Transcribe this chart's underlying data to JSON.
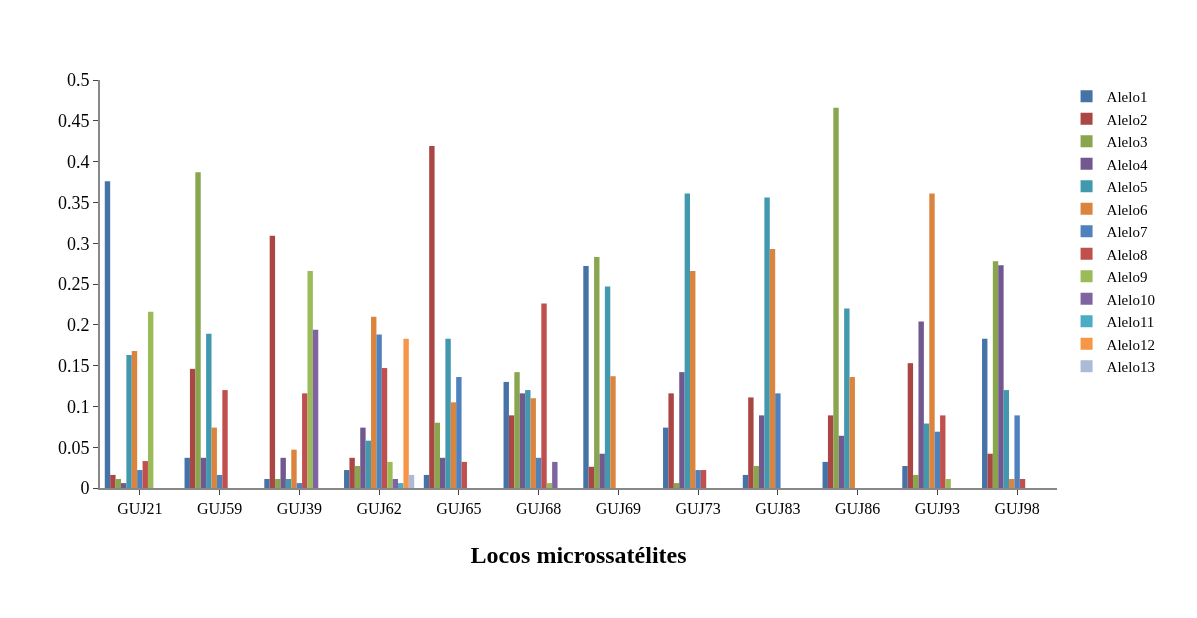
{
  "chart_data": {
    "type": "bar",
    "xlabel": "Locos microssatélites",
    "categories": [
      "GUJ21",
      "GUJ59",
      "GUJ39",
      "GUJ62",
      "GUJ65",
      "GUJ68",
      "GUJ69",
      "GUJ73",
      "GUJ83",
      "GUJ86",
      "GUJ93",
      "GUJ98"
    ],
    "ylim": [
      0,
      0.5
    ],
    "yticks": [
      0,
      0.05,
      0.1,
      0.15,
      0.2,
      0.25,
      0.3,
      0.35,
      0.4,
      0.45,
      0.5
    ],
    "legend": "right",
    "series": [
      {
        "name": "Alelo1",
        "color": "#4572a7",
        "values": [
          0.376,
          0.037,
          0.011,
          0.022,
          0.016,
          0.13,
          0.272,
          0.074,
          0.016,
          0.032,
          0.027,
          0.183
        ]
      },
      {
        "name": "Alelo2",
        "color": "#aa4643",
        "values": [
          0.016,
          0.146,
          0.309,
          0.037,
          0.419,
          0.089,
          0.026,
          0.116,
          0.111,
          0.089,
          0.153,
          0.042
        ]
      },
      {
        "name": "Alelo3",
        "color": "#89a54e",
        "values": [
          0.011,
          0.387,
          0.011,
          0.027,
          0.08,
          0.142,
          0.283,
          0.006,
          0.027,
          0.466,
          0.016,
          0.278
        ]
      },
      {
        "name": "Alelo4",
        "color": "#71588f",
        "values": [
          0.006,
          0.037,
          0.037,
          0.074,
          0.037,
          0.116,
          0.042,
          0.142,
          0.089,
          0.064,
          0.204,
          0.273
        ]
      },
      {
        "name": "Alelo5",
        "color": "#4198af",
        "values": [
          0.163,
          0.189,
          0.011,
          0.058,
          0.183,
          0.12,
          0.247,
          0.361,
          0.356,
          0.22,
          0.079,
          0.12
        ]
      },
      {
        "name": "Alelo6",
        "color": "#db843d",
        "values": [
          0.168,
          0.074,
          0.047,
          0.21,
          0.105,
          0.11,
          0.137,
          0.266,
          0.293,
          0.136,
          0.361,
          0.011
        ]
      },
      {
        "name": "Alelo7",
        "color": "#4f81bd",
        "values": [
          0.022,
          0.016,
          0.006,
          0.188,
          0.136,
          0.037,
          0,
          0.022,
          0.116,
          0,
          0.069,
          0.089
        ]
      },
      {
        "name": "Alelo8",
        "color": "#c0504d",
        "values": [
          0.033,
          0.12,
          0.116,
          0.147,
          0.032,
          0.226,
          0,
          0.022,
          0,
          0,
          0.089,
          0.011
        ]
      },
      {
        "name": "Alelo9",
        "color": "#9bbb59",
        "values": [
          0.216,
          0,
          0.266,
          0.032,
          0,
          0.006,
          0,
          0,
          0,
          0,
          0.011,
          0
        ]
      },
      {
        "name": "Alelo10",
        "color": "#8064a2",
        "values": [
          0,
          0,
          0.194,
          0.011,
          0,
          0.032,
          0,
          0,
          0,
          0,
          0,
          0
        ]
      },
      {
        "name": "Alelo11",
        "color": "#4bacc6",
        "values": [
          0,
          0,
          0,
          0.006,
          0,
          0,
          0,
          0,
          0,
          0,
          0,
          0
        ]
      },
      {
        "name": "Alelo12",
        "color": "#f79646",
        "values": [
          0,
          0,
          0,
          0.183,
          0,
          0,
          0,
          0,
          0,
          0,
          0,
          0
        ]
      },
      {
        "name": "Alelo13",
        "color": "#aabad7",
        "values": [
          0,
          0,
          0,
          0.016,
          0,
          0,
          0,
          0,
          0,
          0,
          0,
          0
        ]
      }
    ]
  }
}
